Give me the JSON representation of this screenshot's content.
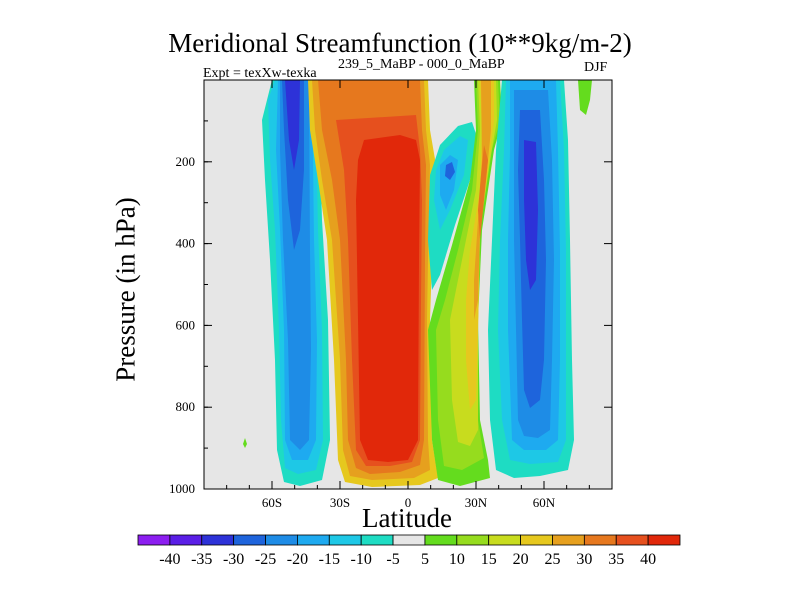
{
  "chart_data": {
    "type": "heatmap",
    "title": "Meridional Streamfunction (10**9kg/m-2)",
    "subtitle_left": "Expt = texXw-texka",
    "subtitle_mid": "239_5_MaBP - 000_0_MaBP",
    "subtitle_right": "DJF",
    "xlabel": "Latitude",
    "ylabel": "Pressure (in hPa)",
    "xlim": [
      -90,
      90
    ],
    "ylim": [
      1000,
      0
    ],
    "x_ticks": [
      -60,
      -30,
      0,
      30,
      60
    ],
    "x_tick_labels": [
      "60S",
      "30S",
      "0",
      "30N",
      "60N"
    ],
    "y_ticks": [
      200,
      400,
      600,
      800,
      1000
    ],
    "y_tick_labels": [
      "200",
      "400",
      "600",
      "800",
      "1000"
    ],
    "colorbar": {
      "levels": [
        -40,
        -35,
        -30,
        -25,
        -20,
        -15,
        -10,
        -5,
        5,
        10,
        15,
        20,
        25,
        30,
        35,
        40
      ],
      "labels": [
        "-40",
        "-35",
        "-30",
        "-25",
        "-20",
        "-15",
        "-10",
        "-5",
        "5",
        "10",
        "15",
        "20",
        "25",
        "30",
        "35",
        "40"
      ],
      "colors": [
        "#8c1ef0",
        "#5a1ee6",
        "#2d32d8",
        "#1e64dc",
        "#1e8ce6",
        "#1eaaf0",
        "#1ec8e6",
        "#1edcc3",
        "#e6e6e6",
        "#64dc1e",
        "#96dc1e",
        "#c8dc1e",
        "#e6c81e",
        "#e6a01e",
        "#e6781e",
        "#e6501e",
        "#e1280a"
      ]
    },
    "features": [
      {
        "name": "southern-negative-cell",
        "sign": "negative",
        "lat_range": [
          -65,
          -28
        ],
        "pressure_range": [
          50,
          980
        ],
        "min_value": -35
      },
      {
        "name": "central-positive-cell",
        "sign": "positive",
        "lat_range": [
          -35,
          12
        ],
        "pressure_range": [
          50,
          990
        ],
        "max_value": 40
      },
      {
        "name": "upper-negative-cell",
        "sign": "negative",
        "lat_range": [
          5,
          25
        ],
        "pressure_range": [
          150,
          550
        ],
        "min_value": -25
      },
      {
        "name": "northern-positive-cell",
        "sign": "positive",
        "lat_range": [
          10,
          32
        ],
        "pressure_range": [
          50,
          990
        ],
        "max_value": 35
      },
      {
        "name": "northern-negative-cell",
        "sign": "negative",
        "lat_range": [
          30,
          70
        ],
        "pressure_range": [
          50,
          960
        ],
        "min_value": -35
      },
      {
        "name": "polar-positive-patch",
        "sign": "positive",
        "lat_range": [
          75,
          82
        ],
        "pressure_range": [
          0,
          100
        ],
        "max_value": 10
      }
    ]
  }
}
